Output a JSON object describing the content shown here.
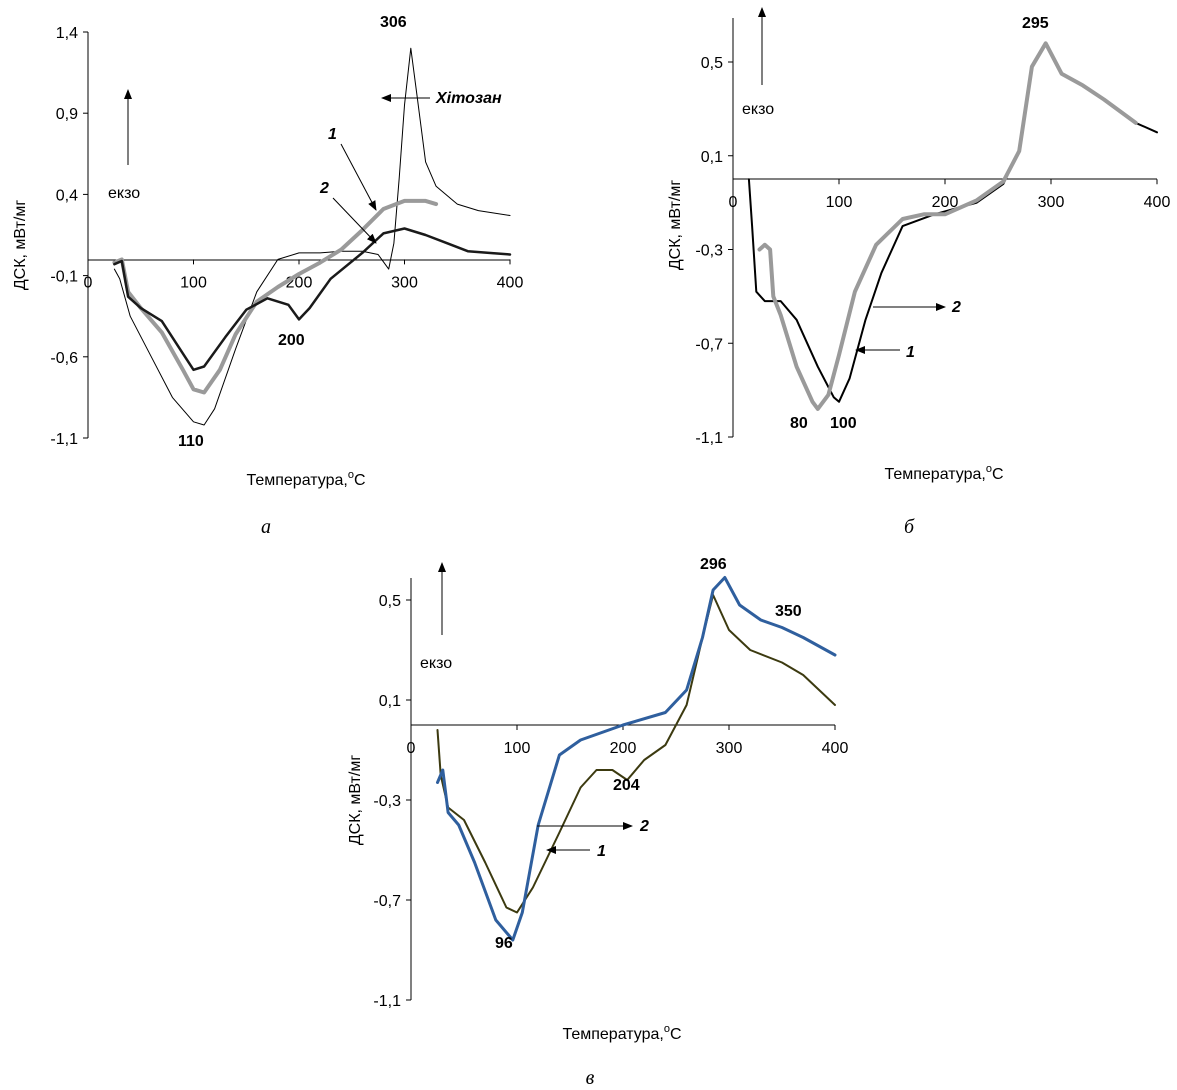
{
  "chart_data": [
    {
      "id": "a",
      "type": "line",
      "panel_label": "а",
      "xlabel": "Температура,",
      "xunit_sup": "o",
      "xunit": "C",
      "ylabel": "ДСК, мВт/мг",
      "exo_label": "екзо",
      "xlim": [
        0,
        400
      ],
      "ylim": [
        -1.1,
        1.4
      ],
      "x_ticks": [
        "0",
        "100",
        "200",
        "300",
        "400"
      ],
      "y_ticks": [
        "1,4",
        "0,9",
        "0,4",
        "-0,1",
        "-0,6",
        "-1,1"
      ],
      "y_tick_values": [
        1.4,
        0.9,
        0.4,
        -0.1,
        -0.6,
        -1.1
      ],
      "series": [
        {
          "key": "chitosan",
          "color": "#000000",
          "width": 1,
          "points": [
            [
              25,
              -0.06
            ],
            [
              30,
              -0.12
            ],
            [
              40,
              -0.35
            ],
            [
              60,
              -0.6
            ],
            [
              80,
              -0.85
            ],
            [
              100,
              -1.0
            ],
            [
              110,
              -1.02
            ],
            [
              120,
              -0.92
            ],
            [
              140,
              -0.55
            ],
            [
              160,
              -0.2
            ],
            [
              180,
              0.0
            ],
            [
              200,
              0.04
            ],
            [
              220,
              0.04
            ],
            [
              240,
              0.05
            ],
            [
              260,
              0.05
            ],
            [
              275,
              0.03
            ],
            [
              285,
              -0.06
            ],
            [
              290,
              0.1
            ],
            [
              295,
              0.5
            ],
            [
              300,
              0.95
            ],
            [
              306,
              1.3
            ],
            [
              312,
              1.0
            ],
            [
              320,
              0.6
            ],
            [
              330,
              0.45
            ],
            [
              350,
              0.34
            ],
            [
              370,
              0.3
            ],
            [
              400,
              0.27
            ]
          ]
        },
        {
          "key": "1",
          "color": "#9a9a9a",
          "width": 4,
          "points": [
            [
              25,
              -0.02
            ],
            [
              32,
              0.0
            ],
            [
              38,
              -0.2
            ],
            [
              50,
              -0.3
            ],
            [
              70,
              -0.45
            ],
            [
              90,
              -0.68
            ],
            [
              100,
              -0.8
            ],
            [
              110,
              -0.82
            ],
            [
              125,
              -0.68
            ],
            [
              140,
              -0.46
            ],
            [
              160,
              -0.26
            ],
            [
              180,
              -0.17
            ],
            [
              200,
              -0.09
            ],
            [
              220,
              -0.02
            ],
            [
              240,
              0.06
            ],
            [
              260,
              0.18
            ],
            [
              280,
              0.31
            ],
            [
              300,
              0.36
            ],
            [
              320,
              0.36
            ],
            [
              330,
              0.34
            ]
          ]
        },
        {
          "key": "2",
          "color": "#1a1a1a",
          "width": 2.5,
          "points": [
            [
              25,
              -0.03
            ],
            [
              32,
              -0.01
            ],
            [
              38,
              -0.23
            ],
            [
              50,
              -0.3
            ],
            [
              70,
              -0.38
            ],
            [
              90,
              -0.58
            ],
            [
              100,
              -0.68
            ],
            [
              110,
              -0.66
            ],
            [
              130,
              -0.48
            ],
            [
              150,
              -0.31
            ],
            [
              170,
              -0.24
            ],
            [
              190,
              -0.28
            ],
            [
              200,
              -0.37
            ],
            [
              210,
              -0.3
            ],
            [
              230,
              -0.12
            ],
            [
              260,
              0.04
            ],
            [
              280,
              0.16
            ],
            [
              300,
              0.19
            ],
            [
              320,
              0.15
            ],
            [
              340,
              0.1
            ],
            [
              360,
              0.05
            ],
            [
              380,
              0.04
            ],
            [
              400,
              0.03
            ]
          ]
        }
      ],
      "annotations": [
        "306",
        "200",
        "110",
        "1",
        "2",
        "Хітозан"
      ]
    },
    {
      "id": "b",
      "type": "line",
      "panel_label": "б",
      "xlabel": "Температура,",
      "xunit_sup": "o",
      "xunit": "C",
      "ylabel": "ДСК, мВт/мг",
      "exo_label": "екзо",
      "xlim": [
        0,
        400
      ],
      "ylim": [
        -1.1,
        0.7
      ],
      "x_ticks": [
        "0",
        "100",
        "200",
        "300",
        "400"
      ],
      "y_ticks": [
        "0,5",
        "0,1",
        "-0,3",
        "-0,7",
        "-1,1"
      ],
      "y_tick_values": [
        0.5,
        0.1,
        -0.3,
        -0.7,
        -1.1
      ],
      "series": [
        {
          "key": "1",
          "color": "#000000",
          "width": 2,
          "points": [
            [
              15,
              0.0
            ],
            [
              18,
              -0.2
            ],
            [
              22,
              -0.48
            ],
            [
              30,
              -0.52
            ],
            [
              45,
              -0.52
            ],
            [
              60,
              -0.6
            ],
            [
              80,
              -0.8
            ],
            [
              95,
              -0.93
            ],
            [
              100,
              -0.95
            ],
            [
              110,
              -0.85
            ],
            [
              125,
              -0.6
            ],
            [
              140,
              -0.4
            ],
            [
              160,
              -0.2
            ],
            [
              190,
              -0.15
            ],
            [
              230,
              -0.1
            ],
            [
              255,
              -0.02
            ],
            [
              270,
              0.12
            ],
            [
              282,
              0.48
            ],
            [
              295,
              0.58
            ],
            [
              310,
              0.45
            ],
            [
              330,
              0.4
            ],
            [
              350,
              0.34
            ],
            [
              380,
              0.24
            ],
            [
              400,
              0.2
            ]
          ]
        },
        {
          "key": "2",
          "color": "#9a9a9a",
          "width": 4,
          "points": [
            [
              25,
              -0.3
            ],
            [
              30,
              -0.28
            ],
            [
              35,
              -0.3
            ],
            [
              38,
              -0.5
            ],
            [
              45,
              -0.58
            ],
            [
              60,
              -0.8
            ],
            [
              75,
              -0.95
            ],
            [
              80,
              -0.98
            ],
            [
              90,
              -0.92
            ],
            [
              100,
              -0.75
            ],
            [
              115,
              -0.48
            ],
            [
              135,
              -0.28
            ],
            [
              160,
              -0.17
            ],
            [
              180,
              -0.15
            ],
            [
              200,
              -0.15
            ],
            [
              230,
              -0.09
            ],
            [
              255,
              -0.01
            ],
            [
              270,
              0.12
            ],
            [
              282,
              0.48
            ],
            [
              295,
              0.58
            ],
            [
              310,
              0.45
            ],
            [
              330,
              0.4
            ],
            [
              350,
              0.34
            ],
            [
              380,
              0.24
            ]
          ]
        }
      ],
      "annotations": [
        "295",
        "80",
        "100",
        "2",
        "1"
      ]
    },
    {
      "id": "c",
      "type": "line",
      "panel_label": "в",
      "xlabel": "Температура,",
      "xunit_sup": "o",
      "xunit": "C",
      "ylabel": "ДСК, мВт/мг",
      "exo_label": "екзо",
      "xlim": [
        0,
        400
      ],
      "ylim": [
        -1.1,
        0.7
      ],
      "x_ticks": [
        "0",
        "100",
        "200",
        "300",
        "400"
      ],
      "y_ticks": [
        "0,5",
        "0,1",
        "-0,3",
        "-0,7",
        "-1,1"
      ],
      "y_tick_values": [
        0.5,
        0.1,
        -0.3,
        -0.7,
        -1.1
      ],
      "series": [
        {
          "key": "1",
          "color": "#3c3a10",
          "width": 2,
          "points": [
            [
              25,
              -0.02
            ],
            [
              28,
              -0.2
            ],
            [
              35,
              -0.33
            ],
            [
              50,
              -0.38
            ],
            [
              70,
              -0.55
            ],
            [
              90,
              -0.73
            ],
            [
              100,
              -0.75
            ],
            [
              115,
              -0.65
            ],
            [
              140,
              -0.43
            ],
            [
              160,
              -0.25
            ],
            [
              175,
              -0.18
            ],
            [
              190,
              -0.18
            ],
            [
              204,
              -0.22
            ],
            [
              220,
              -0.14
            ],
            [
              240,
              -0.08
            ],
            [
              260,
              0.08
            ],
            [
              275,
              0.35
            ],
            [
              285,
              0.52
            ],
            [
              300,
              0.38
            ],
            [
              320,
              0.3
            ],
            [
              350,
              0.25
            ],
            [
              370,
              0.2
            ],
            [
              390,
              0.12
            ],
            [
              400,
              0.08
            ]
          ]
        },
        {
          "key": "2",
          "color": "#2f5f9e",
          "width": 3,
          "points": [
            [
              25,
              -0.23
            ],
            [
              30,
              -0.18
            ],
            [
              35,
              -0.35
            ],
            [
              45,
              -0.4
            ],
            [
              60,
              -0.55
            ],
            [
              80,
              -0.78
            ],
            [
              96,
              -0.86
            ],
            [
              105,
              -0.75
            ],
            [
              120,
              -0.4
            ],
            [
              140,
              -0.12
            ],
            [
              160,
              -0.06
            ],
            [
              180,
              -0.03
            ],
            [
              200,
              0.0
            ],
            [
              240,
              0.05
            ],
            [
              260,
              0.14
            ],
            [
              275,
              0.35
            ],
            [
              285,
              0.54
            ],
            [
              296,
              0.59
            ],
            [
              310,
              0.48
            ],
            [
              330,
              0.42
            ],
            [
              350,
              0.39
            ],
            [
              370,
              0.35
            ],
            [
              400,
              0.28
            ]
          ]
        }
      ],
      "annotations": [
        "296",
        "350",
        "204",
        "96",
        "2",
        "1"
      ]
    }
  ]
}
